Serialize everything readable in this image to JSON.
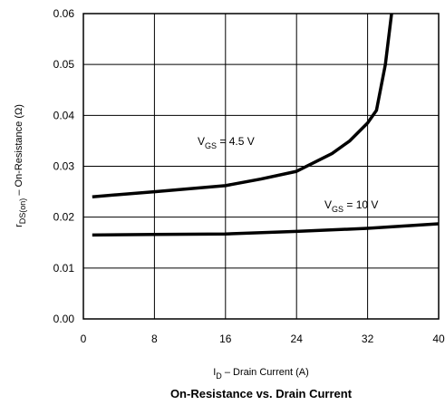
{
  "chart_data": {
    "type": "line",
    "title": "On-Resistance vs. Drain Current",
    "xlabel": [
      {
        "text": "I"
      },
      {
        "text": "D",
        "sub": true
      },
      {
        "text": "  –  Drain Current (A)"
      }
    ],
    "ylabel": [
      {
        "text": "r"
      },
      {
        "text": "DS(on)",
        "sub": true
      },
      {
        "text": "  –  On-Resistance (Ω)"
      }
    ],
    "annotations": [
      [
        {
          "text": "V"
        },
        {
          "text": "GS",
          "sub": true
        },
        {
          "text": " = 4.5 V"
        }
      ],
      [
        {
          "text": "V"
        },
        {
          "text": "GS",
          "sub": true
        },
        {
          "text": " = 10 V"
        }
      ]
    ],
    "series": [
      {
        "color": "#000000",
        "x": [
          1,
          8,
          16,
          20,
          24,
          28,
          30,
          32,
          33,
          34,
          34.7
        ],
        "values": [
          0.024,
          0.025,
          0.0262,
          0.0275,
          0.029,
          0.0325,
          0.035,
          0.0385,
          0.041,
          0.05,
          0.06
        ]
      },
      {
        "color": "#000000",
        "x": [
          1,
          8,
          16,
          24,
          32,
          40
        ],
        "values": [
          0.0165,
          0.0166,
          0.0167,
          0.0172,
          0.0178,
          0.0187
        ]
      }
    ],
    "xlim": [
      0,
      40
    ],
    "xticks": [
      0,
      8,
      16,
      24,
      32,
      40
    ],
    "ylim": [
      0,
      0.06
    ],
    "yticks": [
      {
        "value": 0,
        "label": "0.00"
      },
      0.01,
      0.02,
      0.03,
      0.04,
      0.05,
      0.06
    ],
    "grid": true
  }
}
